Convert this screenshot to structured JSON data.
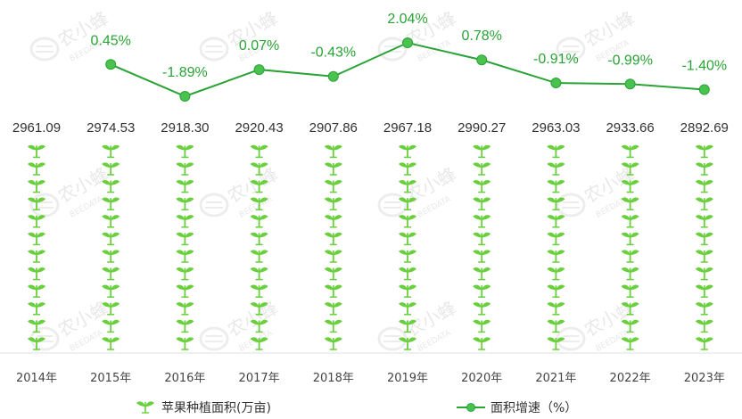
{
  "chart_data": {
    "type": "bar",
    "categories": [
      "2014年",
      "2015年",
      "2016年",
      "2017年",
      "2018年",
      "2019年",
      "2020年",
      "2021年",
      "2022年",
      "2023年"
    ],
    "series": [
      {
        "name": "苹果种植面积(万亩)",
        "kind": "pictorial-bar",
        "values": [
          2961.09,
          2974.53,
          2918.3,
          2920.43,
          2907.86,
          2967.18,
          2990.27,
          2963.03,
          2933.66,
          2892.69
        ],
        "labels": [
          "2961.09",
          "2974.53",
          "2918.30",
          "2920.43",
          "2907.86",
          "2967.18",
          "2990.27",
          "2963.03",
          "2933.66",
          "2892.69"
        ]
      },
      {
        "name": "面积增速（%）",
        "kind": "line",
        "values": [
          null,
          0.45,
          -1.89,
          0.07,
          -0.43,
          2.04,
          0.78,
          -0.91,
          -0.99,
          -1.4
        ],
        "labels": [
          "",
          "0.45%",
          "-1.89%",
          "0.07%",
          "-0.43%",
          "2.04%",
          "0.78%",
          "-0.91%",
          "-0.99%",
          "-1.40%"
        ]
      }
    ],
    "legend": {
      "placement": "bottom-center"
    },
    "grid": false
  },
  "colors": {
    "bar_icon": "#69cf3c",
    "line": "#2aa336",
    "marker": "#49c24f",
    "label_green": "#2aa336"
  },
  "watermark": {
    "text": "农小蜂",
    "subtext": "BEEDATA"
  },
  "legend": {
    "bar_label": "苹果种植面积(万亩)",
    "line_label": "面积增速（%）"
  }
}
